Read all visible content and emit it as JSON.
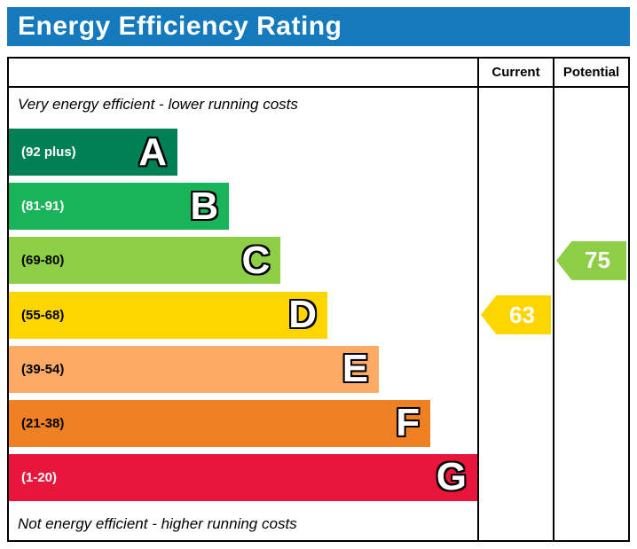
{
  "title": "Energy Efficiency Rating",
  "columns": {
    "current": "Current",
    "potential": "Potential"
  },
  "notes": {
    "top": "Very energy efficient - lower running costs",
    "bottom": "Not energy efficient - higher running costs"
  },
  "theme": {
    "title_bg": "#1479bd",
    "title_color": "#ffffff",
    "border_color": "#000000"
  },
  "chart_data": {
    "type": "bar",
    "title": "Energy Efficiency Rating",
    "orientation": "horizontal",
    "bands": [
      {
        "letter": "A",
        "range": "(92 plus)",
        "color": "#008054",
        "text_color": "#ffffff",
        "width_pct": 36
      },
      {
        "letter": "B",
        "range": "(81-91)",
        "color": "#19b459",
        "text_color": "#ffffff",
        "width_pct": 47
      },
      {
        "letter": "C",
        "range": "(69-80)",
        "color": "#8dce46",
        "text_color": "#000000",
        "width_pct": 58
      },
      {
        "letter": "D",
        "range": "(55-68)",
        "color": "#ffd500",
        "text_color": "#000000",
        "width_pct": 68
      },
      {
        "letter": "E",
        "range": "(39-54)",
        "color": "#fcaa65",
        "text_color": "#000000",
        "width_pct": 79
      },
      {
        "letter": "F",
        "range": "(21-38)",
        "color": "#ef8023",
        "text_color": "#000000",
        "width_pct": 90
      },
      {
        "letter": "G",
        "range": "(1-20)",
        "color": "#e9153b",
        "text_color": "#ffffff",
        "width_pct": 100
      }
    ],
    "current": {
      "value": 63,
      "band": "D",
      "color": "#ffd500"
    },
    "potential": {
      "value": 75,
      "band": "C",
      "color": "#8dce46"
    }
  }
}
